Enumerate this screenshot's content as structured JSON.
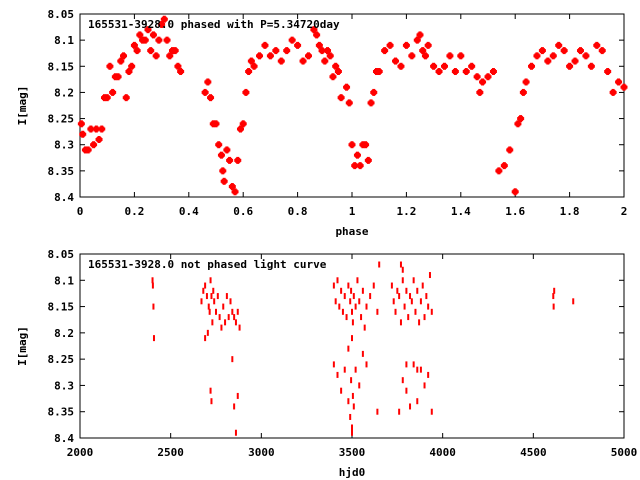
{
  "chart_data": [
    {
      "type": "scatter",
      "title": "165531-3928.0 phased with P=5.34720day",
      "xlabel": "phase",
      "ylabel": "I[mag]",
      "xlim": [
        0,
        2
      ],
      "ylim": [
        8.05,
        8.4
      ],
      "y_inverted": true,
      "grid": false,
      "xticks": [
        "0",
        "0.2",
        "0.4",
        "0.6",
        "0.8",
        "1",
        "1.2",
        "1.4",
        "1.6",
        "1.8",
        "2"
      ],
      "yticks": [
        "8.05",
        "8.1",
        "8.15",
        "8.2",
        "8.25",
        "8.3",
        "8.35",
        "8.4"
      ],
      "color": "#ff0000",
      "points": [
        [
          0.005,
          8.26
        ],
        [
          0.01,
          8.28
        ],
        [
          0.02,
          8.31
        ],
        [
          0.03,
          8.31
        ],
        [
          0.04,
          8.27
        ],
        [
          0.05,
          8.3
        ],
        [
          0.06,
          8.27
        ],
        [
          0.07,
          8.29
        ],
        [
          0.08,
          8.27
        ],
        [
          0.09,
          8.21
        ],
        [
          0.1,
          8.21
        ],
        [
          0.11,
          8.15
        ],
        [
          0.12,
          8.2
        ],
        [
          0.13,
          8.17
        ],
        [
          0.14,
          8.17
        ],
        [
          0.15,
          8.14
        ],
        [
          0.16,
          8.13
        ],
        [
          0.17,
          8.21
        ],
        [
          0.18,
          8.16
        ],
        [
          0.19,
          8.15
        ],
        [
          0.2,
          8.11
        ],
        [
          0.21,
          8.12
        ],
        [
          0.22,
          8.09
        ],
        [
          0.23,
          8.1
        ],
        [
          0.24,
          8.1
        ],
        [
          0.25,
          8.08
        ],
        [
          0.26,
          8.12
        ],
        [
          0.27,
          8.09
        ],
        [
          0.28,
          8.13
        ],
        [
          0.29,
          8.1
        ],
        [
          0.3,
          8.07
        ],
        [
          0.31,
          8.06
        ],
        [
          0.32,
          8.1
        ],
        [
          0.33,
          8.13
        ],
        [
          0.34,
          8.12
        ],
        [
          0.35,
          8.12
        ],
        [
          0.36,
          8.15
        ],
        [
          0.37,
          8.16
        ],
        [
          0.46,
          8.2
        ],
        [
          0.47,
          8.18
        ],
        [
          0.48,
          8.21
        ],
        [
          0.49,
          8.26
        ],
        [
          0.5,
          8.26
        ],
        [
          0.51,
          8.3
        ],
        [
          0.52,
          8.32
        ],
        [
          0.525,
          8.35
        ],
        [
          0.53,
          8.37
        ],
        [
          0.54,
          8.31
        ],
        [
          0.55,
          8.33
        ],
        [
          0.56,
          8.38
        ],
        [
          0.57,
          8.39
        ],
        [
          0.58,
          8.33
        ],
        [
          0.59,
          8.27
        ],
        [
          0.6,
          8.26
        ],
        [
          0.61,
          8.2
        ],
        [
          0.62,
          8.16
        ],
        [
          0.63,
          8.14
        ],
        [
          0.64,
          8.15
        ],
        [
          0.66,
          8.13
        ],
        [
          0.68,
          8.11
        ],
        [
          0.7,
          8.13
        ],
        [
          0.72,
          8.12
        ],
        [
          0.74,
          8.14
        ],
        [
          0.76,
          8.12
        ],
        [
          0.78,
          8.1
        ],
        [
          0.8,
          8.11
        ],
        [
          0.82,
          8.14
        ],
        [
          0.84,
          8.13
        ],
        [
          0.86,
          8.08
        ],
        [
          0.87,
          8.09
        ],
        [
          0.88,
          8.11
        ],
        [
          0.89,
          8.12
        ],
        [
          0.9,
          8.14
        ],
        [
          0.91,
          8.12
        ],
        [
          0.92,
          8.13
        ],
        [
          0.93,
          8.17
        ],
        [
          0.94,
          8.15
        ],
        [
          0.95,
          8.16
        ],
        [
          0.96,
          8.21
        ],
        [
          0.98,
          8.19
        ],
        [
          0.99,
          8.22
        ],
        [
          1.0,
          8.3
        ],
        [
          1.01,
          8.34
        ],
        [
          1.02,
          8.32
        ],
        [
          1.03,
          8.34
        ],
        [
          1.04,
          8.3
        ],
        [
          1.05,
          8.3
        ],
        [
          1.06,
          8.33
        ],
        [
          1.07,
          8.22
        ],
        [
          1.08,
          8.2
        ],
        [
          1.09,
          8.16
        ],
        [
          1.1,
          8.16
        ],
        [
          1.12,
          8.12
        ],
        [
          1.14,
          8.11
        ],
        [
          1.16,
          8.14
        ],
        [
          1.18,
          8.15
        ],
        [
          1.2,
          8.11
        ],
        [
          1.22,
          8.13
        ],
        [
          1.24,
          8.1
        ],
        [
          1.25,
          8.09
        ],
        [
          1.26,
          8.12
        ],
        [
          1.27,
          8.13
        ],
        [
          1.28,
          8.11
        ],
        [
          1.3,
          8.15
        ],
        [
          1.32,
          8.16
        ],
        [
          1.34,
          8.15
        ],
        [
          1.36,
          8.13
        ],
        [
          1.38,
          8.16
        ],
        [
          1.4,
          8.13
        ],
        [
          1.42,
          8.16
        ],
        [
          1.44,
          8.15
        ],
        [
          1.46,
          8.17
        ],
        [
          1.47,
          8.2
        ],
        [
          1.48,
          8.18
        ],
        [
          1.5,
          8.17
        ],
        [
          1.52,
          8.16
        ],
        [
          1.54,
          8.35
        ],
        [
          1.56,
          8.34
        ],
        [
          1.58,
          8.31
        ],
        [
          1.6,
          8.39
        ],
        [
          1.61,
          8.26
        ],
        [
          1.62,
          8.25
        ],
        [
          1.63,
          8.2
        ],
        [
          1.64,
          8.18
        ],
        [
          1.66,
          8.15
        ],
        [
          1.68,
          8.13
        ],
        [
          1.7,
          8.12
        ],
        [
          1.72,
          8.14
        ],
        [
          1.74,
          8.13
        ],
        [
          1.76,
          8.11
        ],
        [
          1.78,
          8.12
        ],
        [
          1.8,
          8.15
        ],
        [
          1.82,
          8.14
        ],
        [
          1.84,
          8.12
        ],
        [
          1.86,
          8.13
        ],
        [
          1.88,
          8.15
        ],
        [
          1.9,
          8.11
        ],
        [
          1.92,
          8.12
        ],
        [
          1.94,
          8.16
        ],
        [
          1.96,
          8.2
        ],
        [
          1.98,
          8.18
        ],
        [
          2.0,
          8.19
        ]
      ]
    },
    {
      "type": "scatter",
      "title": "165531-3928.0 not phased light curve",
      "xlabel": "hjd0",
      "ylabel": "I[mag]",
      "xlim": [
        2000,
        5000
      ],
      "ylim": [
        8.05,
        8.4
      ],
      "y_inverted": true,
      "grid": false,
      "xticks": [
        "2000",
        "2500",
        "3000",
        "3500",
        "4000",
        "4500",
        "5000"
      ],
      "yticks": [
        "8.05",
        "8.1",
        "8.15",
        "8.2",
        "8.25",
        "8.3",
        "8.35",
        "8.4"
      ],
      "color": "#ff0000",
      "points": [
        [
          2400,
          8.1
        ],
        [
          2402,
          8.11
        ],
        [
          2405,
          8.15
        ],
        [
          2408,
          8.21
        ],
        [
          2670,
          8.14
        ],
        [
          2680,
          8.12
        ],
        [
          2690,
          8.11
        ],
        [
          2700,
          8.13
        ],
        [
          2705,
          8.2
        ],
        [
          2710,
          8.15
        ],
        [
          2715,
          8.16
        ],
        [
          2720,
          8.1
        ],
        [
          2725,
          8.13
        ],
        [
          2730,
          8.18
        ],
        [
          2735,
          8.12
        ],
        [
          2740,
          8.14
        ],
        [
          2750,
          8.16
        ],
        [
          2760,
          8.13
        ],
        [
          2770,
          8.17
        ],
        [
          2780,
          8.19
        ],
        [
          2790,
          8.15
        ],
        [
          2800,
          8.18
        ],
        [
          2810,
          8.13
        ],
        [
          2820,
          8.17
        ],
        [
          2830,
          8.14
        ],
        [
          2840,
          8.16
        ],
        [
          2850,
          8.17
        ],
        [
          2860,
          8.18
        ],
        [
          2870,
          8.16
        ],
        [
          2880,
          8.19
        ],
        [
          2690,
          8.21
        ],
        [
          2720,
          8.31
        ],
        [
          2725,
          8.33
        ],
        [
          2840,
          8.25
        ],
        [
          2850,
          8.34
        ],
        [
          2860,
          8.39
        ],
        [
          2870,
          8.32
        ],
        [
          3400,
          8.11
        ],
        [
          3410,
          8.14
        ],
        [
          3420,
          8.1
        ],
        [
          3430,
          8.15
        ],
        [
          3440,
          8.12
        ],
        [
          3450,
          8.16
        ],
        [
          3460,
          8.13
        ],
        [
          3470,
          8.17
        ],
        [
          3480,
          8.11
        ],
        [
          3490,
          8.14
        ],
        [
          3495,
          8.12
        ],
        [
          3500,
          8.16
        ],
        [
          3505,
          8.18
        ],
        [
          3510,
          8.13
        ],
        [
          3520,
          8.15
        ],
        [
          3530,
          8.1
        ],
        [
          3540,
          8.14
        ],
        [
          3550,
          8.17
        ],
        [
          3560,
          8.12
        ],
        [
          3570,
          8.19
        ],
        [
          3580,
          8.15
        ],
        [
          3600,
          8.13
        ],
        [
          3620,
          8.11
        ],
        [
          3640,
          8.16
        ],
        [
          3650,
          8.07
        ],
        [
          3400,
          8.26
        ],
        [
          3420,
          8.28
        ],
        [
          3440,
          8.31
        ],
        [
          3460,
          8.27
        ],
        [
          3480,
          8.33
        ],
        [
          3490,
          8.36
        ],
        [
          3495,
          8.29
        ],
        [
          3500,
          8.38
        ],
        [
          3500,
          8.39
        ],
        [
          3505,
          8.32
        ],
        [
          3510,
          8.34
        ],
        [
          3520,
          8.27
        ],
        [
          3540,
          8.3
        ],
        [
          3560,
          8.24
        ],
        [
          3580,
          8.26
        ],
        [
          3640,
          8.35
        ],
        [
          3480,
          8.23
        ],
        [
          3500,
          8.21
        ],
        [
          3720,
          8.11
        ],
        [
          3730,
          8.14
        ],
        [
          3740,
          8.16
        ],
        [
          3750,
          8.12
        ],
        [
          3760,
          8.13
        ],
        [
          3770,
          8.18
        ],
        [
          3780,
          8.1
        ],
        [
          3790,
          8.15
        ],
        [
          3800,
          8.12
        ],
        [
          3810,
          8.17
        ],
        [
          3820,
          8.13
        ],
        [
          3830,
          8.14
        ],
        [
          3840,
          8.1
        ],
        [
          3850,
          8.16
        ],
        [
          3860,
          8.12
        ],
        [
          3870,
          8.18
        ],
        [
          3880,
          8.14
        ],
        [
          3890,
          8.11
        ],
        [
          3900,
          8.17
        ],
        [
          3910,
          8.13
        ],
        [
          3920,
          8.15
        ],
        [
          3930,
          8.09
        ],
        [
          3940,
          8.16
        ],
        [
          3770,
          8.07
        ],
        [
          3780,
          8.08
        ],
        [
          3760,
          8.35
        ],
        [
          3780,
          8.29
        ],
        [
          3800,
          8.31
        ],
        [
          3820,
          8.34
        ],
        [
          3840,
          8.26
        ],
        [
          3860,
          8.33
        ],
        [
          3880,
          8.27
        ],
        [
          3900,
          8.3
        ],
        [
          3920,
          8.28
        ],
        [
          3940,
          8.35
        ],
        [
          3800,
          8.26
        ],
        [
          3860,
          8.27
        ],
        [
          4610,
          8.13
        ],
        [
          4612,
          8.15
        ],
        [
          4615,
          8.12
        ],
        [
          4720,
          8.14
        ]
      ]
    }
  ]
}
